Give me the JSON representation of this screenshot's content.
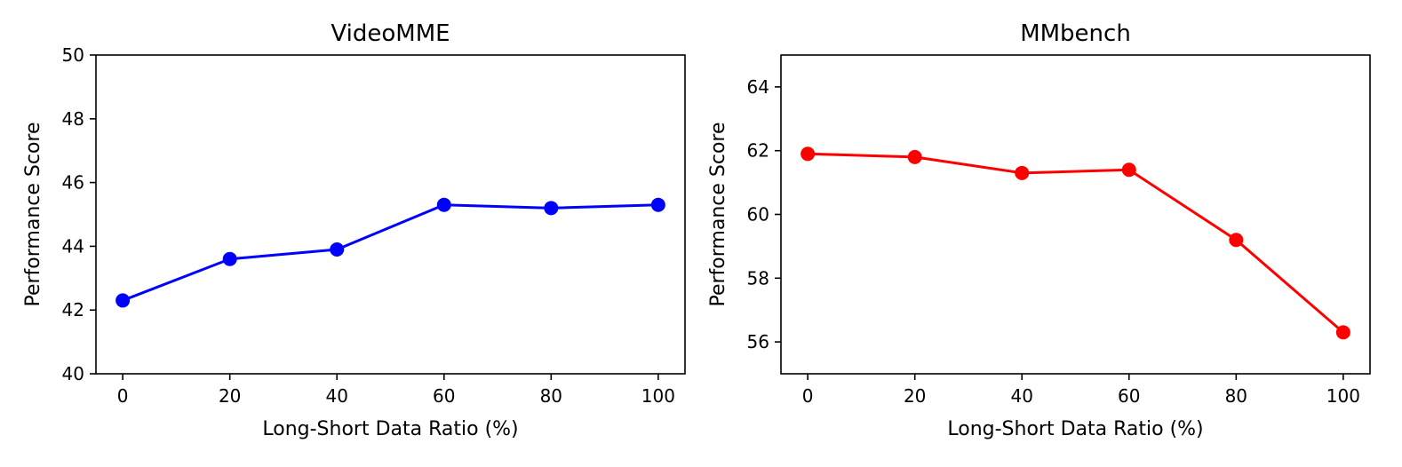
{
  "chart_data": [
    {
      "type": "line",
      "title": "VideoMME",
      "xlabel": "Long-Short Data Ratio (%)",
      "ylabel": "Performance Score",
      "x": [
        0,
        20,
        40,
        60,
        80,
        100
      ],
      "series": [
        {
          "values": [
            42.3,
            43.6,
            43.9,
            45.3,
            45.2,
            45.3
          ],
          "color": "#0000ff"
        }
      ],
      "xticks": [
        0,
        20,
        40,
        60,
        80,
        100
      ],
      "yticks": [
        40,
        42,
        44,
        46,
        48,
        50
      ],
      "xlim": [
        -5,
        105
      ],
      "ylim": [
        40,
        50
      ],
      "grid": false,
      "marker": "circle"
    },
    {
      "type": "line",
      "title": "MMbench",
      "xlabel": "Long-Short Data Ratio (%)",
      "ylabel": "Performance Score",
      "x": [
        0,
        20,
        40,
        60,
        80,
        100
      ],
      "series": [
        {
          "values": [
            61.9,
            61.8,
            61.3,
            61.4,
            59.2,
            56.3
          ],
          "color": "#ff0000"
        }
      ],
      "xticks": [
        0,
        20,
        40,
        60,
        80,
        100
      ],
      "yticks": [
        56,
        58,
        60,
        62,
        64
      ],
      "xlim": [
        -5,
        105
      ],
      "ylim": [
        55,
        65
      ],
      "grid": false,
      "marker": "circle"
    }
  ]
}
